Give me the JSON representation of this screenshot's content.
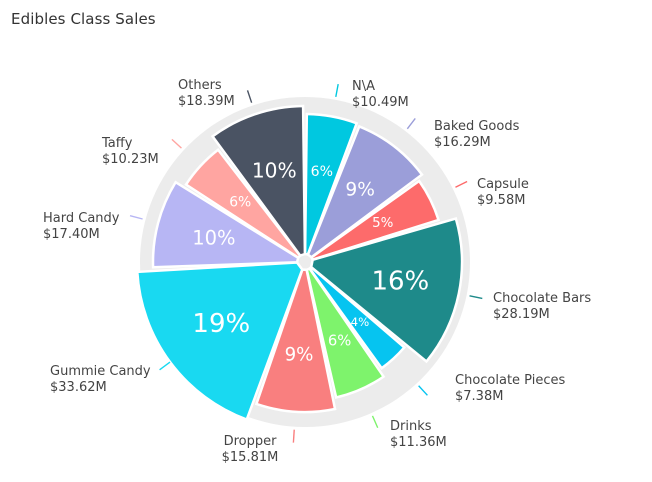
{
  "chart_data": {
    "type": "pie",
    "title": "Edibles Class Sales",
    "categories": [
      "N\\A",
      "Baked Goods",
      "Capsule",
      "Chocolate Bars",
      "Chocolate Pieces",
      "Drinks",
      "Dropper",
      "Gummie Candy",
      "Hard Candy",
      "Taffy",
      "Others"
    ],
    "values": [
      10.49,
      16.29,
      9.58,
      28.19,
      7.38,
      11.36,
      15.81,
      33.62,
      17.4,
      10.23,
      18.39
    ],
    "value_labels": [
      "$10.49M",
      "$16.29M",
      "$9.58M",
      "$28.19M",
      "$7.38M",
      "$11.36M",
      "$15.81M",
      "$33.62M",
      "$17.40M",
      "$10.23M",
      "$18.39M"
    ],
    "percent_labels": [
      "6%",
      "9%",
      "5%",
      "16%",
      "4%",
      "6%",
      "9%",
      "19%",
      "10%",
      "6%",
      "10%"
    ],
    "colors": [
      "#00c8e0",
      "#9b9ed9",
      "#fd6b6b",
      "#1e8a8a",
      "#06c4f0",
      "#7ef36c",
      "#f97f7f",
      "#19d9f1",
      "#b7b6f4",
      "#ffa5a1",
      "#4a5363"
    ]
  }
}
